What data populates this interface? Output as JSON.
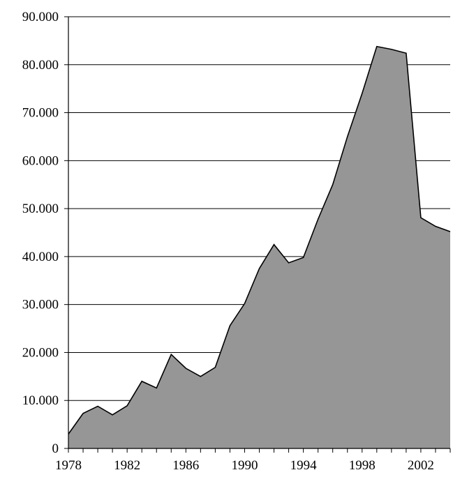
{
  "chart_data": {
    "type": "area",
    "title": "",
    "xlabel": "",
    "ylabel": "",
    "x": [
      1978,
      1979,
      1980,
      1981,
      1982,
      1983,
      1984,
      1985,
      1986,
      1987,
      1988,
      1989,
      1990,
      1991,
      1992,
      1993,
      1994,
      1995,
      1996,
      1997,
      1998,
      1999,
      2000,
      2001,
      2002,
      2003,
      2004
    ],
    "series": [
      {
        "values": [
          3000,
          7300,
          8800,
          7000,
          8900,
          14000,
          12600,
          19600,
          16700,
          15000,
          16900,
          25600,
          30200,
          37500,
          42500,
          38700,
          39800,
          47800,
          55000,
          65000,
          74000,
          83800,
          83200,
          82400,
          48100,
          46300,
          45200
        ]
      }
    ],
    "xticks": [
      "1978",
      "1982",
      "1986",
      "1990",
      "1994",
      "1998",
      "2002"
    ],
    "yticks": [
      "0",
      "10.000",
      "20.000",
      "30.000",
      "40.000",
      "50.000",
      "60.000",
      "70.000",
      "80.000",
      "90.000"
    ],
    "xlim": [
      1978,
      2004
    ],
    "ylim": [
      0,
      90000
    ],
    "grid": "horizontal",
    "legend": "none",
    "fill_color": "#969696",
    "line_color": "#000000"
  }
}
